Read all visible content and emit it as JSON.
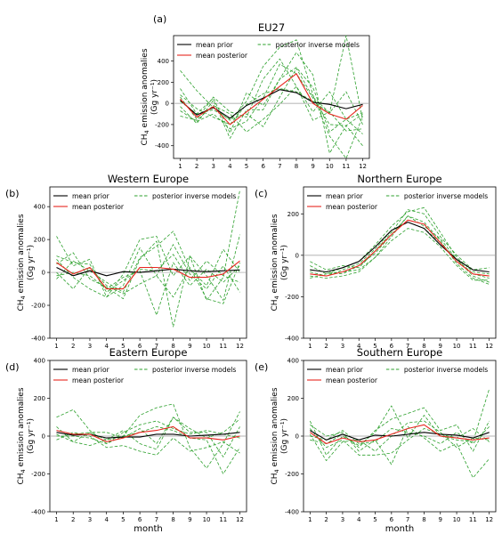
{
  "figure": {
    "xlabel": "month",
    "ylabel_main": "CH",
    "ylabel_sub": "4",
    "ylabel_rest": " emission anomalies",
    "ylabel_unit": "(Gg  yr⁻¹)"
  },
  "legend": {
    "prior": "mean prior",
    "posterior": "mean posterior",
    "models": "posterior inverse models"
  },
  "colors": {
    "prior": "#000000",
    "posterior": "#e8261f",
    "models": "#2ca02c",
    "zero": "#9a9a9a"
  },
  "chart_data": [
    {
      "id": "a",
      "panel_label": "(a)",
      "title": "EU27",
      "type": "line",
      "x": [
        1,
        2,
        3,
        4,
        5,
        6,
        7,
        8,
        9,
        10,
        11,
        12
      ],
      "ylim": [
        -520,
        640
      ],
      "yticks": [
        -400,
        -200,
        0,
        200,
        400
      ],
      "xticks": [
        1,
        2,
        3,
        4,
        5,
        6,
        7,
        8,
        9,
        10,
        11,
        12
      ],
      "series": [
        {
          "name": "mean prior",
          "kind": "prior",
          "values": [
            30,
            -110,
            -40,
            -140,
            -20,
            50,
            130,
            100,
            10,
            -10,
            -50,
            -10
          ]
        },
        {
          "name": "mean posterior",
          "kind": "posterior",
          "values": [
            40,
            -130,
            -30,
            -200,
            -80,
            40,
            160,
            280,
            0,
            -100,
            -150,
            -20
          ]
        },
        {
          "kind": "model",
          "values": [
            310,
            120,
            -40,
            -160,
            20,
            350,
            530,
            600,
            80,
            -310,
            -520,
            -120
          ]
        },
        {
          "kind": "model",
          "values": [
            140,
            -100,
            50,
            -280,
            100,
            -20,
            230,
            480,
            270,
            -470,
            -210,
            -400
          ]
        },
        {
          "kind": "model",
          "values": [
            60,
            -150,
            60,
            -80,
            -130,
            230,
            420,
            160,
            -160,
            -80,
            -260,
            -240
          ]
        },
        {
          "kind": "model",
          "values": [
            20,
            -100,
            -60,
            -150,
            -100,
            -220,
            60,
            330,
            60,
            -90,
            110,
            -200
          ]
        },
        {
          "kind": "model",
          "values": [
            -70,
            -170,
            -100,
            -240,
            -170,
            50,
            370,
            280,
            50,
            -200,
            -210,
            -100
          ]
        },
        {
          "kind": "model",
          "values": [
            -120,
            -160,
            -20,
            -100,
            -270,
            -150,
            -10,
            160,
            -80,
            110,
            -150,
            -290
          ]
        },
        {
          "kind": "model",
          "values": [
            80,
            -50,
            -130,
            -200,
            -10,
            90,
            140,
            110,
            20,
            -90,
            640,
            -160
          ]
        },
        {
          "kind": "model",
          "values": [
            -30,
            -190,
            30,
            -330,
            -60,
            -60,
            230,
            340,
            150,
            -270,
            -150,
            -90
          ]
        }
      ]
    },
    {
      "id": "b",
      "panel_label": "(b)",
      "title": "Western Europe",
      "type": "line",
      "x": [
        1,
        2,
        3,
        4,
        5,
        6,
        7,
        8,
        9,
        10,
        11,
        12
      ],
      "ylim": [
        -400,
        520
      ],
      "yticks": [
        -400,
        -200,
        0,
        200,
        400
      ],
      "xticks": [
        1,
        2,
        3,
        4,
        5,
        6,
        7,
        8,
        9,
        10,
        11,
        12
      ],
      "series": [
        {
          "name": "mean prior",
          "kind": "prior",
          "values": [
            30,
            -20,
            10,
            -20,
            5,
            0,
            10,
            20,
            10,
            5,
            10,
            15
          ]
        },
        {
          "name": "mean posterior",
          "kind": "posterior",
          "values": [
            60,
            -10,
            30,
            -100,
            -100,
            30,
            30,
            20,
            -30,
            -30,
            -10,
            70
          ]
        },
        {
          "kind": "model",
          "values": [
            220,
            40,
            80,
            -150,
            -10,
            200,
            220,
            -20,
            100,
            -170,
            -30,
            500
          ]
        },
        {
          "kind": "model",
          "values": [
            50,
            120,
            -40,
            -90,
            -160,
            80,
            190,
            -330,
            100,
            -20,
            -170,
            230
          ]
        },
        {
          "kind": "model",
          "values": [
            -40,
            70,
            10,
            -60,
            -120,
            90,
            160,
            250,
            20,
            -80,
            140,
            0
          ]
        },
        {
          "kind": "model",
          "values": [
            80,
            -30,
            -100,
            -150,
            -80,
            150,
            -20,
            170,
            -10,
            -100,
            40,
            -120
          ]
        },
        {
          "kind": "model",
          "values": [
            0,
            -100,
            30,
            -80,
            -130,
            -70,
            -20,
            -150,
            30,
            -160,
            -190,
            60
          ]
        },
        {
          "kind": "model",
          "values": [
            100,
            60,
            50,
            -120,
            -50,
            20,
            10,
            110,
            -50,
            70,
            -20,
            -60
          ]
        },
        {
          "kind": "model",
          "values": [
            -20,
            0,
            -20,
            -100,
            -30,
            10,
            -260,
            60,
            -80,
            20,
            -60,
            40
          ]
        }
      ]
    },
    {
      "id": "c",
      "panel_label": "(c)",
      "title": "Northern Europe",
      "type": "line",
      "x": [
        1,
        2,
        3,
        4,
        5,
        6,
        7,
        8,
        9,
        10,
        11,
        12
      ],
      "ylim": [
        -400,
        330
      ],
      "yticks": [
        -400,
        -200,
        0,
        200
      ],
      "xticks": [
        1,
        2,
        3,
        4,
        5,
        6,
        7,
        8,
        9,
        10,
        11,
        12
      ],
      "series": [
        {
          "name": "mean prior",
          "kind": "prior",
          "values": [
            -70,
            -80,
            -60,
            -30,
            40,
            120,
            160,
            130,
            50,
            -20,
            -70,
            -80
          ]
        },
        {
          "name": "mean posterior",
          "kind": "posterior",
          "values": [
            -90,
            -100,
            -80,
            -50,
            20,
            100,
            170,
            150,
            60,
            -30,
            -90,
            -100
          ]
        },
        {
          "kind": "model",
          "values": [
            -30,
            -70,
            -50,
            -60,
            20,
            110,
            220,
            200,
            90,
            0,
            -70,
            -60
          ]
        },
        {
          "kind": "model",
          "values": [
            -50,
            -90,
            -60,
            -30,
            50,
            140,
            210,
            230,
            110,
            -10,
            -80,
            -90
          ]
        },
        {
          "kind": "model",
          "values": [
            -100,
            -110,
            -100,
            -80,
            -10,
            90,
            190,
            160,
            70,
            -40,
            -110,
            -140
          ]
        },
        {
          "kind": "model",
          "values": [
            -80,
            -100,
            -70,
            -40,
            30,
            120,
            160,
            130,
            60,
            -20,
            -90,
            -110
          ]
        },
        {
          "kind": "model",
          "values": [
            -110,
            -90,
            -80,
            -70,
            -10,
            70,
            130,
            110,
            40,
            -50,
            -120,
            -120
          ]
        },
        {
          "kind": "model",
          "values": [
            -70,
            -80,
            -90,
            -50,
            10,
            100,
            190,
            140,
            80,
            -20,
            -100,
            -130
          ]
        }
      ]
    },
    {
      "id": "d",
      "panel_label": "(d)",
      "title": "Eastern Europe",
      "type": "line",
      "x": [
        1,
        2,
        3,
        4,
        5,
        6,
        7,
        8,
        9,
        10,
        11,
        12
      ],
      "ylim": [
        -400,
        400
      ],
      "yticks": [
        -400,
        -200,
        0,
        200,
        400
      ],
      "xticks": [
        1,
        2,
        3,
        4,
        5,
        6,
        7,
        8,
        9,
        10,
        11,
        12
      ],
      "series": [
        {
          "name": "mean prior",
          "kind": "prior",
          "values": [
            20,
            5,
            10,
            -10,
            -5,
            -5,
            10,
            10,
            0,
            5,
            10,
            20
          ]
        },
        {
          "name": "mean posterior",
          "kind": "posterior",
          "values": [
            30,
            10,
            10,
            -30,
            -10,
            20,
            30,
            50,
            -10,
            -10,
            -20,
            0
          ]
        },
        {
          "kind": "model",
          "values": [
            100,
            140,
            30,
            -40,
            0,
            110,
            150,
            170,
            -60,
            -170,
            -40,
            130
          ]
        },
        {
          "kind": "model",
          "values": [
            50,
            -30,
            20,
            20,
            -10,
            40,
            -40,
            100,
            20,
            20,
            -110,
            50
          ]
        },
        {
          "kind": "model",
          "values": [
            -20,
            20,
            0,
            -60,
            -50,
            -80,
            -100,
            -10,
            -80,
            -60,
            -30,
            -90
          ]
        },
        {
          "kind": "model",
          "values": [
            10,
            -30,
            -50,
            -20,
            30,
            -40,
            -70,
            100,
            40,
            -10,
            20,
            90
          ]
        },
        {
          "kind": "model",
          "values": [
            30,
            10,
            20,
            -20,
            0,
            20,
            50,
            30,
            -10,
            -20,
            -200,
            -60
          ]
        },
        {
          "kind": "model",
          "values": [
            0,
            0,
            -10,
            -40,
            20,
            60,
            80,
            40,
            10,
            30,
            10,
            -10
          ]
        }
      ]
    },
    {
      "id": "e",
      "panel_label": "(e)",
      "title": "Southern Europe",
      "type": "line",
      "x": [
        1,
        2,
        3,
        4,
        5,
        6,
        7,
        8,
        9,
        10,
        11,
        12
      ],
      "ylim": [
        -400,
        400
      ],
      "yticks": [
        -400,
        -200,
        0,
        200,
        400
      ],
      "xticks": [
        1,
        2,
        3,
        4,
        5,
        6,
        7,
        8,
        9,
        10,
        11,
        12
      ],
      "series": [
        {
          "name": "mean prior",
          "kind": "prior",
          "values": [
            30,
            -20,
            10,
            -20,
            5,
            0,
            10,
            20,
            10,
            5,
            -10,
            20
          ]
        },
        {
          "name": "mean posterior",
          "kind": "posterior",
          "values": [
            20,
            -40,
            -10,
            -30,
            -20,
            10,
            40,
            60,
            0,
            -10,
            -20,
            -10
          ]
        },
        {
          "kind": "model",
          "values": [
            80,
            -100,
            0,
            -50,
            20,
            160,
            -10,
            110,
            0,
            -20,
            -30,
            250
          ]
        },
        {
          "kind": "model",
          "values": [
            60,
            0,
            20,
            -80,
            -20,
            -150,
            50,
            -10,
            -80,
            -40,
            -220,
            -120
          ]
        },
        {
          "kind": "model",
          "values": [
            -20,
            -40,
            10,
            -60,
            30,
            90,
            120,
            150,
            30,
            60,
            -80,
            80
          ]
        },
        {
          "kind": "model",
          "values": [
            10,
            -130,
            -30,
            -20,
            -80,
            0,
            70,
            80,
            20,
            -60,
            -10,
            -20
          ]
        },
        {
          "kind": "model",
          "values": [
            40,
            -60,
            -20,
            -100,
            -100,
            -90,
            -20,
            40,
            10,
            -10,
            40,
            -30
          ]
        },
        {
          "kind": "model",
          "values": [
            0,
            -20,
            30,
            -40,
            -30,
            40,
            20,
            0,
            -40,
            20,
            -40,
            50
          ]
        }
      ]
    }
  ]
}
